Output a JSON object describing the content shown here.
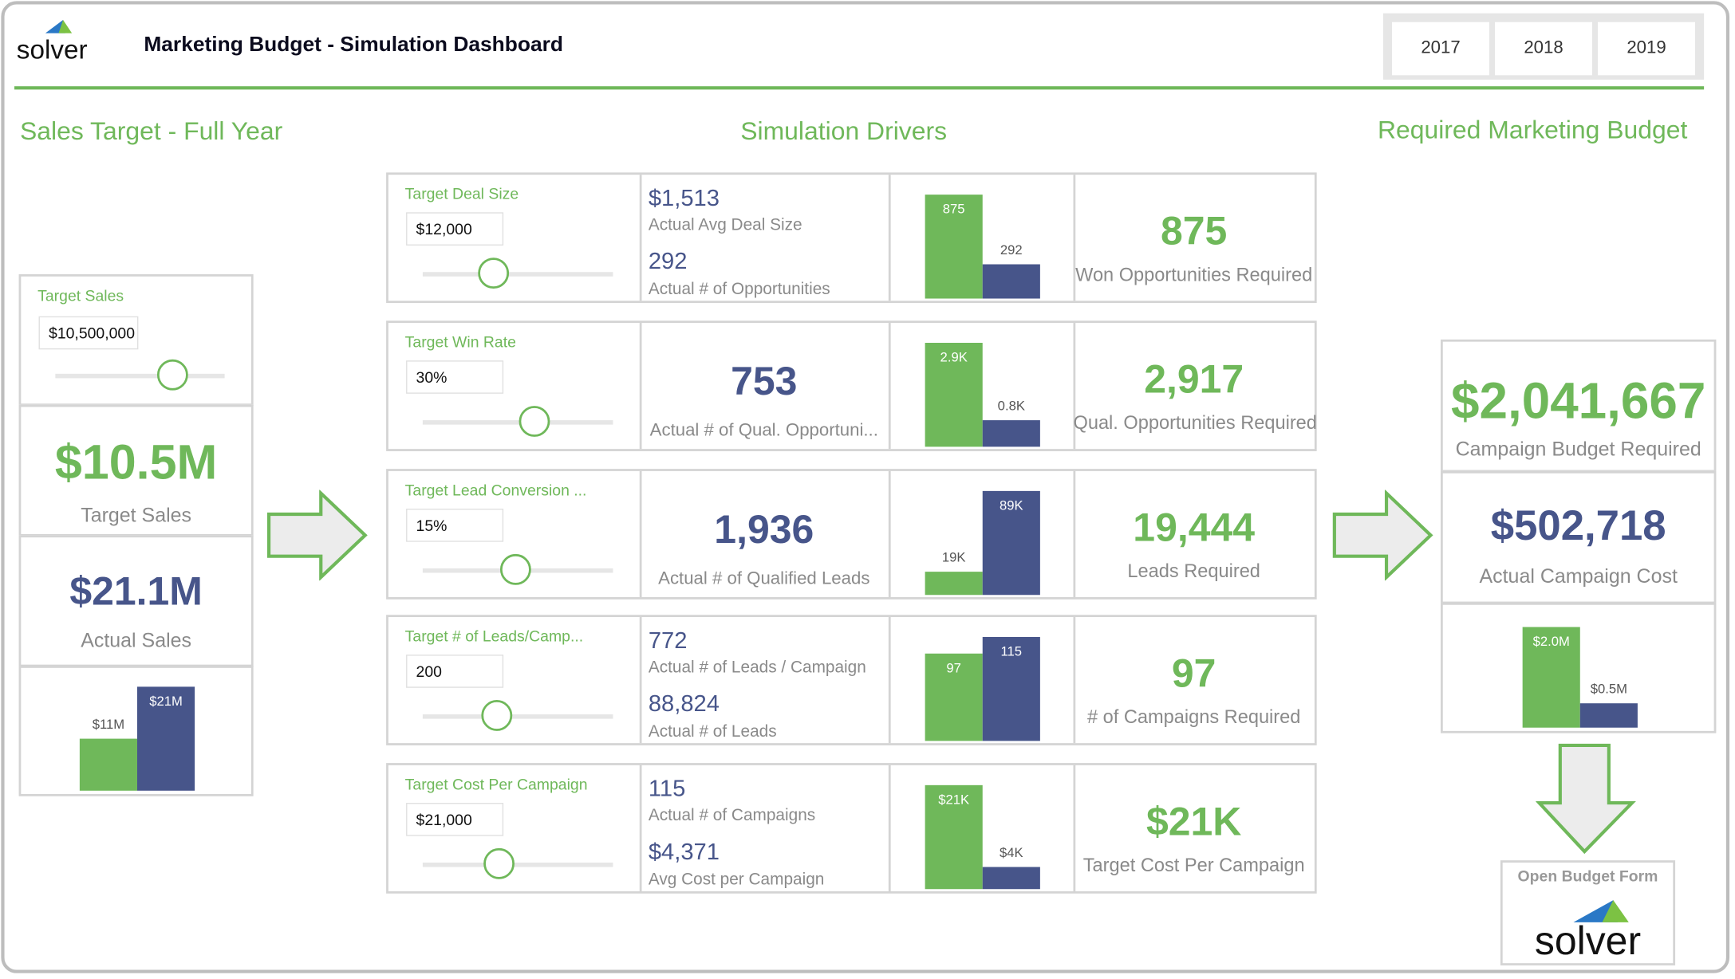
{
  "header": {
    "logo": "solver",
    "title": "Marketing Budget - Simulation Dashboard",
    "years": [
      "2017",
      "2018",
      "2019"
    ]
  },
  "sections": {
    "left": "Sales Target - Full Year",
    "middle": "Simulation Drivers",
    "right": "Required Marketing Budget"
  },
  "colors": {
    "accent": "#6fb85a",
    "navy": "#47558a",
    "border": "#d4d4d4"
  },
  "sales": {
    "input_label": "Target Sales",
    "input_value": "$10,500,000",
    "slider_fraction": 0.69,
    "target_value": "$10.5M",
    "target_label": "Target Sales",
    "actual_value": "$21.1M",
    "actual_label": "Actual Sales"
  },
  "drivers": [
    {
      "label": "Target Deal Size",
      "input": "$12,000",
      "slider_fraction": 0.37,
      "stats": [
        {
          "value": "$1,513",
          "label": "Actual Avg Deal Size"
        },
        {
          "value": "292",
          "label": "Actual # of Opportunities"
        }
      ],
      "result": {
        "value": "875",
        "label": "Won Opportunities Required"
      }
    },
    {
      "label": "Target Win Rate",
      "input": "30%",
      "slider_fraction": 0.59,
      "stats": [
        {
          "value": "753",
          "label": "Actual # of Qual. Opportuni..."
        }
      ],
      "result": {
        "value": "2,917",
        "label": "Qual. Opportunities Required"
      }
    },
    {
      "label": "Target Lead Conversion ...",
      "input": "15%",
      "slider_fraction": 0.49,
      "stats": [
        {
          "value": "1,936",
          "label": "Actual # of Qualified Leads"
        }
      ],
      "result": {
        "value": "19,444",
        "label": "Leads Required"
      }
    },
    {
      "label": "Target # of Leads/Camp...",
      "input": "200",
      "slider_fraction": 0.39,
      "stats": [
        {
          "value": "772",
          "label": "Actual # of Leads / Campaign"
        },
        {
          "value": "88,824",
          "label": "Actual # of Leads"
        }
      ],
      "result": {
        "value": "97",
        "label": "# of Campaigns Required"
      }
    },
    {
      "label": "Target Cost Per Campaign",
      "input": "$21,000",
      "slider_fraction": 0.4,
      "stats": [
        {
          "value": "115",
          "label": "Actual # of Campaigns"
        },
        {
          "value": "$4,371",
          "label": "Avg Cost per Campaign"
        }
      ],
      "result": {
        "value": "$21K",
        "label": "Target Cost Per Campaign"
      }
    }
  ],
  "budget": {
    "required_value": "$2,041,667",
    "required_label": "Campaign Budget Required",
    "actual_value": "$502,718",
    "actual_label": "Actual Campaign Cost",
    "open_form_label": "Open Budget Form",
    "open_form_logo": "solver"
  },
  "chart_data": [
    {
      "type": "bar",
      "id": "sales",
      "values": [
        10.5,
        21.1
      ],
      "labels": [
        "$11M",
        "$21M"
      ]
    },
    {
      "type": "bar",
      "id": "d0",
      "values": [
        875,
        292
      ],
      "labels": [
        "875",
        "292"
      ]
    },
    {
      "type": "bar",
      "id": "d1",
      "values": [
        2917,
        753
      ],
      "labels": [
        "2.9K",
        "0.8K"
      ]
    },
    {
      "type": "bar",
      "id": "d2",
      "values": [
        19444,
        89000
      ],
      "labels": [
        "19K",
        "89K"
      ]
    },
    {
      "type": "bar",
      "id": "d3",
      "values": [
        97,
        115
      ],
      "labels": [
        "97",
        "115"
      ]
    },
    {
      "type": "bar",
      "id": "d4",
      "values": [
        21000,
        4371
      ],
      "labels": [
        "$21K",
        "$4K"
      ]
    },
    {
      "type": "bar",
      "id": "budget",
      "values": [
        2041667,
        502718
      ],
      "labels": [
        "$2.0M",
        "$0.5M"
      ]
    }
  ]
}
